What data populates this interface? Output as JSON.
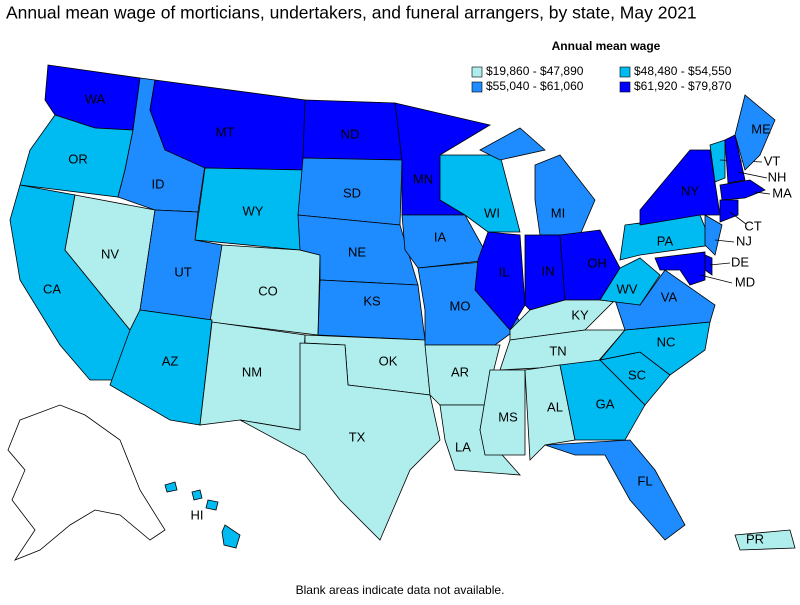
{
  "title": "Annual mean wage of morticians, undertakers, and funeral arrangers, by state, May 2021",
  "legend": {
    "title": "Annual mean wage",
    "items": [
      {
        "label": "$19,860 - $47,890",
        "color": "#b0eeee"
      },
      {
        "label": "$48,480 - $54,550",
        "color": "#00bbf2"
      },
      {
        "label": "$55,040 - $61,060",
        "color": "#1e8cff"
      },
      {
        "label": "$61,920 - $79,870",
        "color": "#0000ff"
      }
    ]
  },
  "states": [
    {
      "label": "WA",
      "class": 3
    },
    {
      "label": "OR",
      "class": 1
    },
    {
      "label": "CA",
      "class": 1
    },
    {
      "label": "NV",
      "class": 0
    },
    {
      "label": "ID",
      "class": 2
    },
    {
      "label": "MT",
      "class": 3
    },
    {
      "label": "WY",
      "class": 1
    },
    {
      "label": "UT",
      "class": 2
    },
    {
      "label": "CO",
      "class": 0
    },
    {
      "label": "AZ",
      "class": 1
    },
    {
      "label": "NM",
      "class": 0
    },
    {
      "label": "ND",
      "class": 3
    },
    {
      "label": "SD",
      "class": 2
    },
    {
      "label": "NE",
      "class": 2
    },
    {
      "label": "KS",
      "class": 2
    },
    {
      "label": "OK",
      "class": 0
    },
    {
      "label": "TX",
      "class": 0
    },
    {
      "label": "MN",
      "class": 3
    },
    {
      "label": "IA",
      "class": 2
    },
    {
      "label": "MO",
      "class": 2
    },
    {
      "label": "AR",
      "class": 0
    },
    {
      "label": "LA",
      "class": 0
    },
    {
      "label": "WI",
      "class": 1
    },
    {
      "label": "IL",
      "class": 3
    },
    {
      "label": "MI",
      "class": 2
    },
    {
      "label": "IN",
      "class": 3
    },
    {
      "label": "OH",
      "class": 3
    },
    {
      "label": "KY",
      "class": 0
    },
    {
      "label": "TN",
      "class": 0
    },
    {
      "label": "MS",
      "class": 0
    },
    {
      "label": "AL",
      "class": 0
    },
    {
      "label": "GA",
      "class": 1
    },
    {
      "label": "FL",
      "class": 2
    },
    {
      "label": "SC",
      "class": 1
    },
    {
      "label": "NC",
      "class": 1
    },
    {
      "label": "VA",
      "class": 2
    },
    {
      "label": "WV",
      "class": 1
    },
    {
      "label": "PA",
      "class": 1
    },
    {
      "label": "NY",
      "class": 3
    },
    {
      "label": "VT",
      "class": 1
    },
    {
      "label": "NH",
      "class": 3
    },
    {
      "label": "ME",
      "class": 2
    },
    {
      "label": "MA",
      "class": 3
    },
    {
      "label": "CT",
      "class": 3
    },
    {
      "label": "NJ",
      "class": 2
    },
    {
      "label": "DE",
      "class": 3
    },
    {
      "label": "MD",
      "class": 3
    },
    {
      "label": "HI",
      "class": 1
    },
    {
      "label": "PR",
      "class": 0
    }
  ],
  "footnote": "Blank areas indicate data not available."
}
